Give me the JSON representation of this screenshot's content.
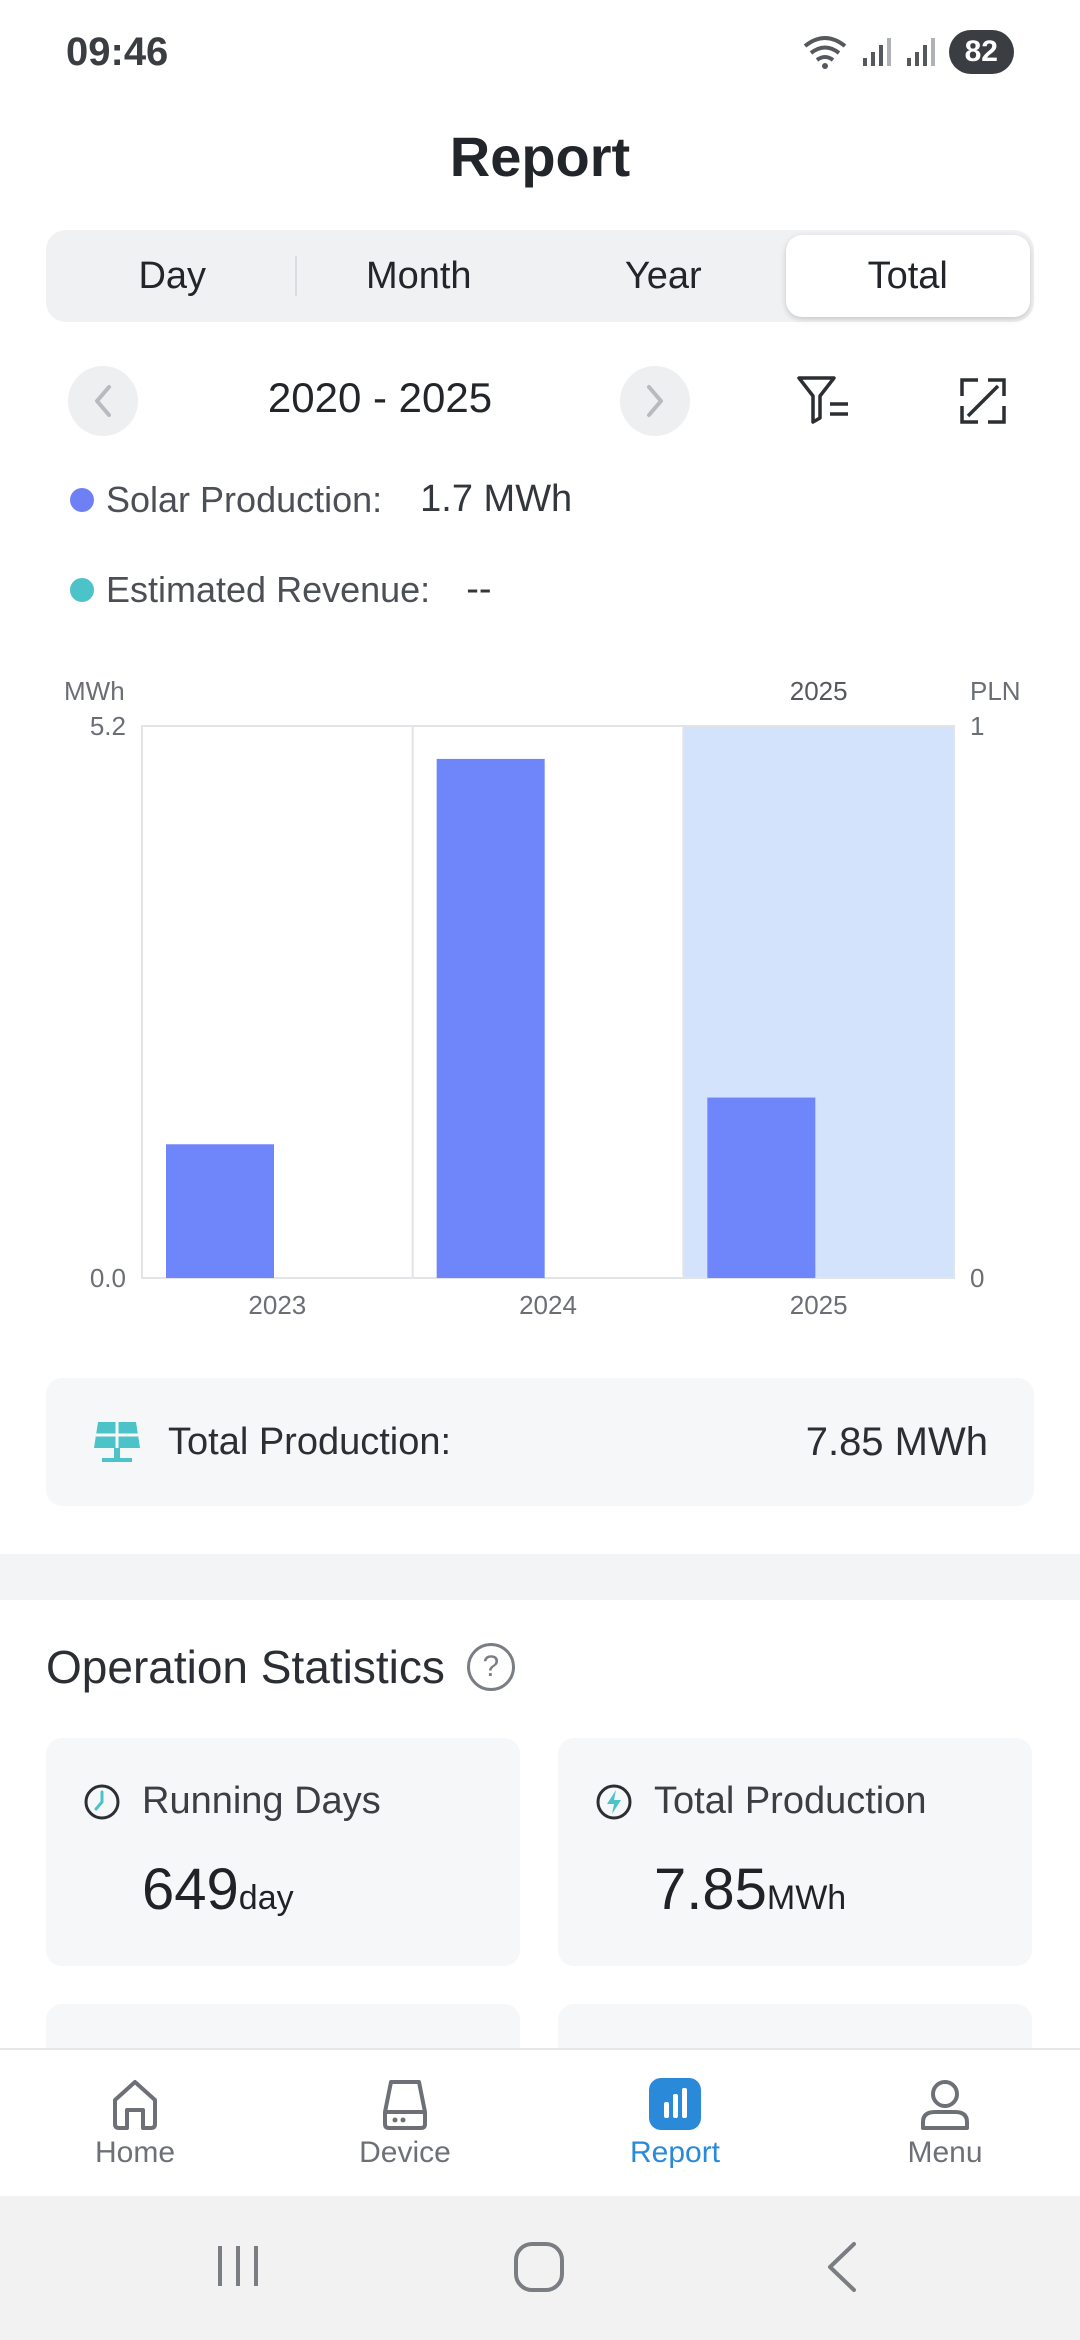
{
  "status_bar": {
    "time": "09:46",
    "battery": "82"
  },
  "header": {
    "title": "Report"
  },
  "tabs": [
    {
      "label": "Day",
      "active": false
    },
    {
      "label": "Month",
      "active": false
    },
    {
      "label": "Year",
      "active": false
    },
    {
      "label": "Total",
      "active": true
    }
  ],
  "period": {
    "label": "2020 - 2025",
    "prev_icon": "chevron-left-icon",
    "next_icon": "chevron-right-icon",
    "filter_icon": "filter-icon",
    "expand_icon": "expand-icon"
  },
  "legend": {
    "solar": {
      "label": "Solar Production:",
      "value": "1.7 MWh",
      "color": "#6f80f5"
    },
    "revenue": {
      "label": "Estimated Revenue:",
      "value": "--",
      "color": "#4cc3c9"
    }
  },
  "chart_data": {
    "type": "bar",
    "categories": [
      "2023",
      "2024",
      "2025"
    ],
    "series": [
      {
        "values": [
          1.26,
          4.89,
          1.7
        ]
      }
    ],
    "ylabel_left": "MWh",
    "ylabel_right": "PLN",
    "ylim_left": [
      0,
      5.2
    ],
    "ylim_right": [
      0,
      1
    ],
    "yticks_left": [
      "0.0",
      "5.2"
    ],
    "yticks_right": [
      "0",
      "1"
    ],
    "selected_category": "2025",
    "selected_label": "2025",
    "bar_color": "#6f86fb",
    "highlight_color": "#d3e3fb"
  },
  "total_production": {
    "label": "Total Production:",
    "value": "7.85 MWh",
    "icon": "solar-panel-icon"
  },
  "operation_statistics": {
    "title": "Operation Statistics",
    "help_icon": "help-icon",
    "cards": [
      {
        "label": "Running Days",
        "value": "649",
        "unit": "day",
        "icon": "clock-icon"
      },
      {
        "label": "Total Production",
        "value": "7.85",
        "unit": "MWh",
        "icon": "lightning-icon"
      }
    ]
  },
  "bottom_nav": [
    {
      "label": "Home",
      "icon": "home-icon",
      "active": false
    },
    {
      "label": "Device",
      "icon": "device-icon",
      "active": false
    },
    {
      "label": "Report",
      "icon": "report-icon",
      "active": true
    },
    {
      "label": "Menu",
      "icon": "user-icon",
      "active": false
    }
  ]
}
